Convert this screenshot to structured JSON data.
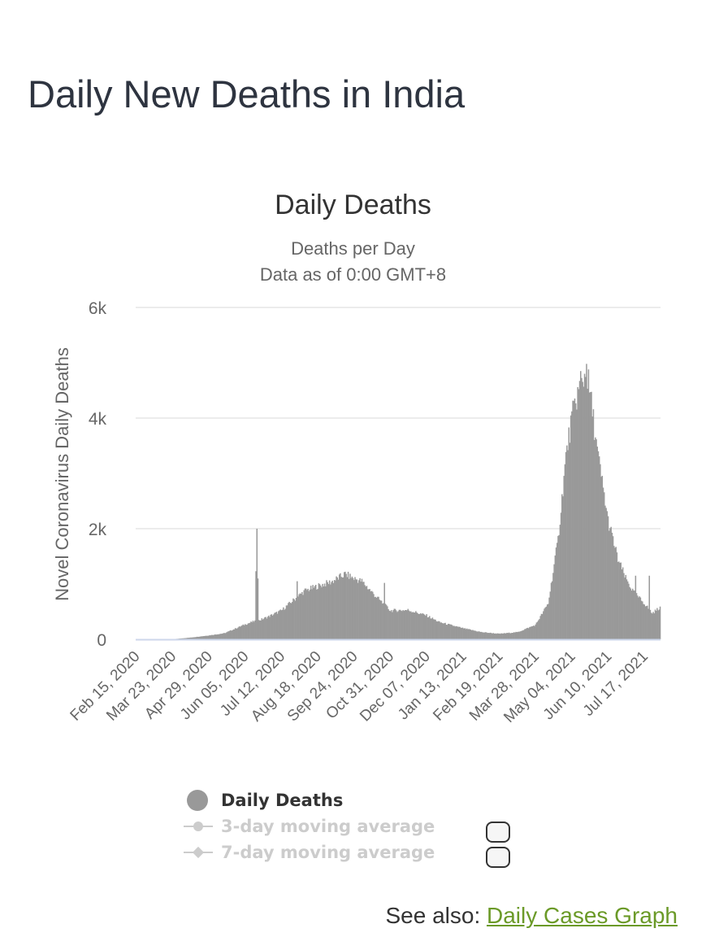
{
  "page": {
    "title": "Daily New Deaths in India",
    "see_also_label": "See also:",
    "see_also_link": "Daily Cases Graph"
  },
  "legend": {
    "items": [
      {
        "label": "Daily Deaths",
        "active": true
      },
      {
        "label": "3-day moving average",
        "active": false
      },
      {
        "label": "7-day moving average",
        "active": false
      }
    ]
  },
  "colors": {
    "bars": "#999999",
    "axis": "#ccd6eb",
    "grid": "#e6e6e6",
    "link": "#6b9a28"
  },
  "chart_data": {
    "type": "bar",
    "title": "Daily Deaths",
    "subtitle": "Deaths per Day",
    "subtitle2": "Data as of 0:00 GMT+8",
    "ylabel": "Novel Coronavirus Daily Deaths",
    "xlabel": "",
    "ylim": [
      0,
      6000
    ],
    "yticks": [
      {
        "value": 0,
        "label": "0"
      },
      {
        "value": 2000,
        "label": "2k"
      },
      {
        "value": 4000,
        "label": "4k"
      },
      {
        "value": 6000,
        "label": "6k"
      }
    ],
    "x_start": "2020-02-15",
    "x_end": "2021-08-02",
    "xticks": [
      "Feb 15, 2020",
      "Mar 23, 2020",
      "Apr 29, 2020",
      "Jun 05, 2020",
      "Jul 12, 2020",
      "Aug 18, 2020",
      "Sep 24, 2020",
      "Oct 31, 2020",
      "Dec 07, 2020",
      "Jan 13, 2021",
      "Feb 19, 2021",
      "Mar 28, 2021",
      "May 04, 2021",
      "Jun 10, 2021",
      "Jul 17, 2021"
    ],
    "grid": true,
    "series": [
      {
        "name": "Daily Deaths",
        "interpolation": "linear between points, one bar per day",
        "points": [
          [
            "2020-02-15",
            0
          ],
          [
            "2020-03-23",
            2
          ],
          [
            "2020-04-10",
            30
          ],
          [
            "2020-04-29",
            70
          ],
          [
            "2020-05-15",
            110
          ],
          [
            "2020-06-05",
            270
          ],
          [
            "2020-06-15",
            330
          ],
          [
            "2020-06-17",
            2000
          ],
          [
            "2020-06-19",
            340
          ],
          [
            "2020-06-30",
            420
          ],
          [
            "2020-07-12",
            520
          ],
          [
            "2020-07-25",
            720
          ],
          [
            "2020-08-05",
            880
          ],
          [
            "2020-08-18",
            960
          ],
          [
            "2020-09-01",
            1040
          ],
          [
            "2020-09-15",
            1180
          ],
          [
            "2020-09-24",
            1100
          ],
          [
            "2020-10-02",
            1050
          ],
          [
            "2020-10-15",
            800
          ],
          [
            "2020-10-31",
            520
          ],
          [
            "2020-11-18",
            530
          ],
          [
            "2020-12-07",
            430
          ],
          [
            "2020-12-20",
            310
          ],
          [
            "2021-01-13",
            200
          ],
          [
            "2021-02-01",
            130
          ],
          [
            "2021-02-19",
            100
          ],
          [
            "2021-03-10",
            130
          ],
          [
            "2021-03-28",
            260
          ],
          [
            "2021-04-10",
            650
          ],
          [
            "2021-04-20",
            1800
          ],
          [
            "2021-04-28",
            3300
          ],
          [
            "2021-05-04",
            4000
          ],
          [
            "2021-05-10",
            4450
          ],
          [
            "2021-05-18",
            4800
          ],
          [
            "2021-05-23",
            4400
          ],
          [
            "2021-05-30",
            3400
          ],
          [
            "2021-06-10",
            2150
          ],
          [
            "2021-06-20",
            1450
          ],
          [
            "2021-06-28",
            1100
          ],
          [
            "2021-07-06",
            850
          ],
          [
            "2021-07-17",
            650
          ],
          [
            "2021-07-25",
            470
          ],
          [
            "2021-08-02",
            580
          ]
        ],
        "spikes": [
          [
            "2020-06-17",
            2000
          ],
          [
            "2020-07-28",
            1050
          ],
          [
            "2020-10-25",
            1020
          ],
          [
            "2021-05-19",
            4980
          ],
          [
            "2021-05-21",
            4880
          ],
          [
            "2021-05-13",
            4850
          ],
          [
            "2021-07-22",
            1150
          ],
          [
            "2021-07-08",
            1150
          ]
        ]
      }
    ]
  }
}
